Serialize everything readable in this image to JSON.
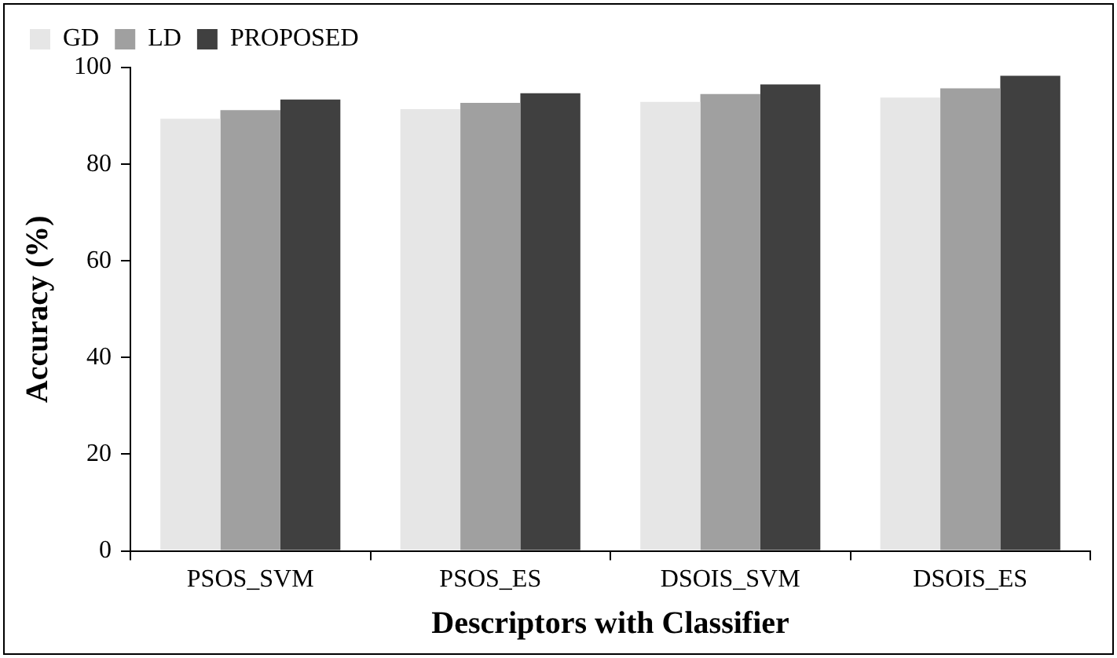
{
  "chart_data": {
    "type": "bar",
    "xlabel": "Descriptors with Classifier",
    "ylabel": "Accuracy (%)",
    "categories": [
      "PSOS_SVM",
      "PSOS_ES",
      "DSOIS_SVM",
      "DSOIS_ES"
    ],
    "series": [
      {
        "name": "GD",
        "color": "#e6e6e6",
        "values": [
          89.4,
          91.4,
          92.9,
          93.8
        ]
      },
      {
        "name": "LD",
        "color": "#a0a0a0",
        "values": [
          91.2,
          92.7,
          94.5,
          95.7
        ]
      },
      {
        "name": "PROPOSED",
        "color": "#404040",
        "values": [
          93.4,
          94.7,
          96.5,
          98.3
        ]
      }
    ],
    "ylim": [
      0,
      100
    ],
    "yticks": [
      0,
      20,
      40,
      60,
      80,
      100
    ],
    "grid": false,
    "legend": "top"
  }
}
